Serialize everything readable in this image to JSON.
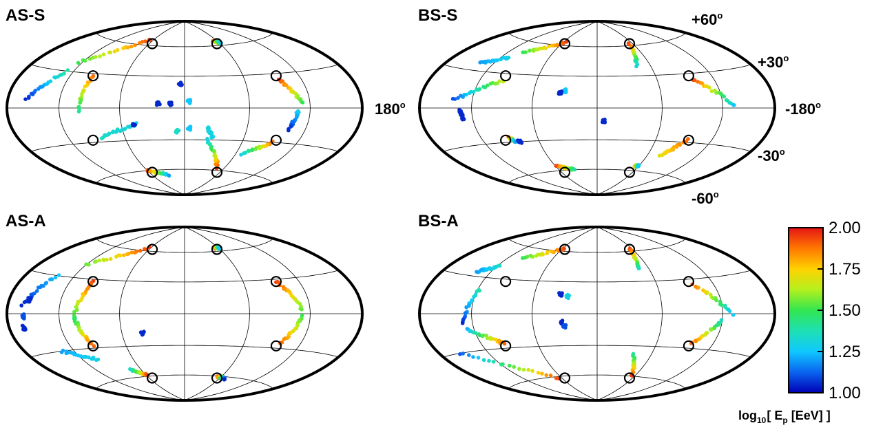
{
  "chart_data": {
    "type": "scatter",
    "projection": "Hammer-Aitoff (all-sky)",
    "grid": "on",
    "colorbar": {
      "label_prefix": "log",
      "label_sub1": "10",
      "label_mid": "[ E",
      "label_sub2": "p",
      "label_end": " [EeV] ]",
      "min": 1.0,
      "max": 2.0,
      "ticks": [
        "2.00",
        "1.75",
        "1.50",
        "1.25",
        "1.00"
      ],
      "colormap": [
        "#0000b4",
        "#0a64f0",
        "#10c8ff",
        "#1ee0b4",
        "#32e650",
        "#b4f01e",
        "#ffd200",
        "#ff7800",
        "#e61414"
      ]
    },
    "annotations": {
      "lon_left": "180",
      "lon_right": "-180",
      "lat_p60": "+60",
      "lat_p30": "+30",
      "lat_m30": "-30",
      "lat_m60": "-60",
      "degree": "o"
    },
    "panels": [
      {
        "title": "AS-S",
        "markers": [
          [
            -55,
            62
          ],
          [
            55,
            62
          ],
          [
            -95,
            28
          ],
          [
            95,
            28
          ],
          [
            -95,
            -28
          ],
          [
            95,
            -28
          ],
          [
            -55,
            -62
          ],
          [
            55,
            -62
          ]
        ],
        "arcs": [
          {
            "from": [
              -66,
              66
            ],
            "to": [
              -125,
              38
            ],
            "e0": 1.95,
            "e1": 1.5
          },
          {
            "from": [
              -128,
              30
            ],
            "to": [
              -157,
              6
            ],
            "e0": 1.4,
            "e1": 1.05
          },
          {
            "from": [
              -95,
              28
            ],
            "to": [
              -100,
              -4
            ],
            "e0": 1.9,
            "e1": 1.4
          },
          {
            "from": [
              -85,
              -26
            ],
            "to": [
              -45,
              -15
            ],
            "e0": 1.35,
            "e1": 1.3
          },
          {
            "from": [
              -60,
              -60
            ],
            "to": [
              -30,
              -66
            ],
            "e0": 1.95,
            "e1": 1.2
          },
          {
            "from": [
              53,
              64
            ],
            "to": [
              63,
              63
            ],
            "e0": 1.95,
            "e1": 1.25
          },
          {
            "from": [
              96,
              25
            ],
            "to": [
              112,
              4
            ],
            "e0": 1.95,
            "e1": 1.5
          },
          {
            "from": [
              108,
              -2
            ],
            "to": [
              102,
              -18
            ],
            "e0": 1.3,
            "e1": 1.05
          },
          {
            "from": [
              93,
              -30
            ],
            "to": [
              68,
              -42
            ],
            "e0": 1.9,
            "e1": 1.3
          },
          {
            "from": [
              48,
              -57
            ],
            "to": [
              22,
              -30
            ],
            "e0": 1.95,
            "e1": 1.3
          },
          {
            "from": [
              22,
              -18
            ],
            "to": [
              28,
              -28
            ],
            "e0": 1.3,
            "e1": 1.3
          }
        ],
        "blobs": [
          {
            "at": [
              -4,
              23
            ],
            "e": 1.05
          },
          {
            "at": [
              -24,
              4
            ],
            "e": 1.05
          },
          {
            "at": [
              -13,
              4
            ],
            "e": 1.05
          },
          {
            "at": [
              4,
              6
            ],
            "e": 1.25
          },
          {
            "at": [
              -48,
              -15
            ],
            "e": 1.05
          },
          {
            "at": [
              -7,
              -22
            ],
            "e": 1.35
          },
          {
            "at": [
              4,
              -19
            ],
            "e": 1.25
          }
        ]
      },
      {
        "title": "BS-S",
        "markers": [
          [
            -55,
            62
          ],
          [
            55,
            62
          ],
          [
            -95,
            28
          ],
          [
            95,
            28
          ],
          [
            -95,
            -28
          ],
          [
            95,
            -28
          ],
          [
            -55,
            -62
          ],
          [
            55,
            -62
          ]
        ],
        "arcs": [
          {
            "from": [
              -56,
              63
            ],
            "to": [
              -100,
              50
            ],
            "e0": 1.95,
            "e1": 1.5
          },
          {
            "from": [
              -110,
              44
            ],
            "to": [
              -138,
              36
            ],
            "e0": 1.3,
            "e1": 1.2
          },
          {
            "from": [
              -95,
              24
            ],
            "to": [
              -140,
              6
            ],
            "e0": 1.65,
            "e1": 1.1
          },
          {
            "from": [
              -132,
              -2
            ],
            "to": [
              -130,
              -8
            ],
            "e0": 1.05,
            "e1": 1.05
          },
          {
            "from": [
              -58,
              -55
            ],
            "to": [
              -35,
              -60
            ],
            "e0": 1.95,
            "e1": 1.4
          },
          {
            "from": [
              54,
              62
            ],
            "to": [
              45,
              40
            ],
            "e0": 1.95,
            "e1": 1.3
          },
          {
            "from": [
              98,
              25
            ],
            "to": [
              132,
              2
            ],
            "e0": 1.95,
            "e1": 1.25
          },
          {
            "from": [
              93,
              -28
            ],
            "to": [
              76,
              -44
            ],
            "e0": 1.9,
            "e1": 1.7
          },
          {
            "from": [
              -90,
              -26
            ],
            "to": [
              -85,
              -30
            ],
            "e0": 1.95,
            "e1": 1.2
          },
          {
            "from": [
              54,
              -55
            ],
            "to": [
              60,
              -55
            ],
            "e0": 1.9,
            "e1": 1.25
          }
        ],
        "blobs": [
          {
            "at": [
              -30,
              16
            ],
            "e": 1.25
          },
          {
            "at": [
              -35,
              14
            ],
            "e": 1.05
          },
          {
            "at": [
              6,
              -12
            ],
            "e": 1.05
          },
          {
            "at": [
              -81,
              -30
            ],
            "e": 1.05
          }
        ]
      },
      {
        "title": "AS-A",
        "markers": [
          [
            -55,
            62
          ],
          [
            55,
            62
          ],
          [
            -95,
            28
          ],
          [
            95,
            28
          ],
          [
            -95,
            -28
          ],
          [
            95,
            -28
          ],
          [
            -55,
            -62
          ],
          [
            55,
            -62
          ]
        ],
        "arcs": [
          {
            "from": [
              -64,
              63
            ],
            "to": [
              -120,
              42
            ],
            "e0": 1.95,
            "e1": 1.55
          },
          {
            "from": [
              -140,
              30
            ],
            "to": [
              -162,
              6
            ],
            "e0": 1.25,
            "e1": 1.05
          },
          {
            "from": [
              -95,
              28
            ],
            "to": [
              -104,
              -2
            ],
            "e0": 1.95,
            "e1": 1.5
          },
          {
            "from": [
              -104,
              -4
            ],
            "to": [
              -95,
              -28
            ],
            "e0": 1.45,
            "e1": 1.9
          },
          {
            "from": [
              -135,
              -30
            ],
            "to": [
              -102,
              -40
            ],
            "e0": 1.2,
            "e1": 1.3
          },
          {
            "from": [
              -74,
              -52
            ],
            "to": [
              -58,
              -59
            ],
            "e0": 1.3,
            "e1": 1.95
          },
          {
            "from": [
              53,
              64
            ],
            "to": [
              62,
              63
            ],
            "e0": 1.95,
            "e1": 1.25
          },
          {
            "from": [
              95,
              28
            ],
            "to": [
              112,
              4
            ],
            "e0": 1.95,
            "e1": 1.55
          },
          {
            "from": [
              112,
              -2
            ],
            "to": [
              98,
              -26
            ],
            "e0": 1.5,
            "e1": 1.9
          },
          {
            "from": [
              54,
              -60
            ],
            "to": [
              70,
              -62
            ],
            "e0": 1.9,
            "e1": 1.05
          }
        ],
        "blobs": [
          {
            "at": [
              -162,
              -10
            ],
            "e": 1.05
          },
          {
            "at": [
              -160,
              -2
            ],
            "e": 1.1
          },
          {
            "at": [
              -155,
              10
            ],
            "e": 1.05
          },
          {
            "at": [
              -40,
              -18
            ],
            "e": 1.05
          }
        ]
      },
      {
        "title": "BS-A",
        "markers": [
          [
            -55,
            62
          ],
          [
            55,
            62
          ],
          [
            -95,
            28
          ],
          [
            95,
            28
          ],
          [
            -95,
            -28
          ],
          [
            95,
            -28
          ],
          [
            -55,
            -62
          ],
          [
            55,
            -62
          ]
        ],
        "arcs": [
          {
            "from": [
              -56,
              63
            ],
            "to": [
              -100,
              50
            ],
            "e0": 1.95,
            "e1": 1.5
          },
          {
            "from": [
              -118,
              40
            ],
            "to": [
              -136,
              34
            ],
            "e0": 1.35,
            "e1": 1.2
          },
          {
            "from": [
              -118,
              20
            ],
            "to": [
              -130,
              -8
            ],
            "e0": 1.4,
            "e1": 1.05
          },
          {
            "from": [
              -128,
              -12
            ],
            "to": [
              -95,
              -26
            ],
            "e0": 1.2,
            "e1": 1.9
          },
          {
            "from": [
              -155,
              -30
            ],
            "to": [
              -65,
              -62
            ],
            "e0": 1.1,
            "e1": 1.95
          },
          {
            "from": [
              56,
              62
            ],
            "to": [
              48,
              42
            ],
            "e0": 1.95,
            "e1": 1.35
          },
          {
            "from": [
              98,
              25
            ],
            "to": [
              130,
              0
            ],
            "e0": 1.9,
            "e1": 1.25
          },
          {
            "from": [
              120,
              -6
            ],
            "to": [
              96,
              -26
            ],
            "e0": 1.35,
            "e1": 1.9
          },
          {
            "from": [
              40,
              -38
            ],
            "to": [
              55,
              -60
            ],
            "e0": 1.4,
            "e1": 1.95
          }
        ],
        "blobs": [
          {
            "at": [
              -35,
              18
            ],
            "e": 1.05
          },
          {
            "at": [
              -28,
              16
            ],
            "e": 1.3
          },
          {
            "at": [
              -32,
              -8
            ],
            "e": 1.05
          },
          {
            "at": [
              -30,
              -12
            ],
            "e": 1.1
          }
        ]
      }
    ]
  }
}
